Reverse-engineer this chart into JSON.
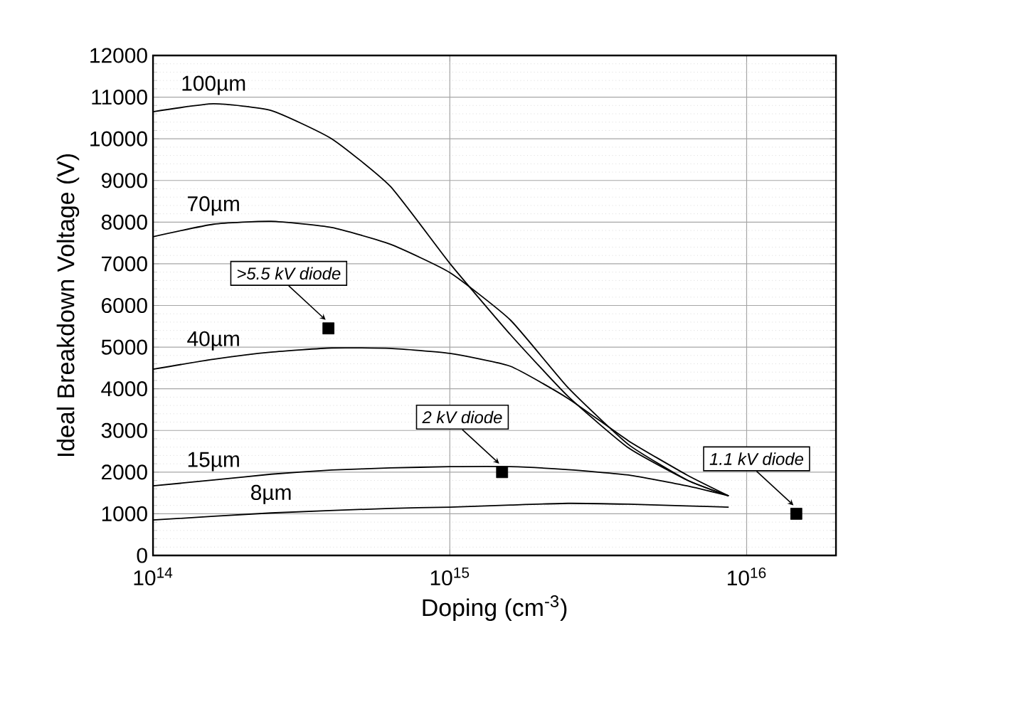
{
  "chart_data": {
    "type": "line",
    "xlabel": "Doping (cm$^{-3}$)",
    "ylabel": "Ideal Breakdown Voltage (V)",
    "log": "x",
    "xlim": [
      100000000000000.0,
      2e+16
    ],
    "ylim": [
      0,
      12000
    ],
    "xticks": [
      {
        "value": 100000000000000.0,
        "label": "10$^{14}$"
      },
      {
        "value": 1000000000000000.0,
        "label": "10$^{15}$"
      },
      {
        "value": 1e+16,
        "label": "10$^{16}$"
      }
    ],
    "yticks": [
      0,
      1000,
      2000,
      3000,
      4000,
      5000,
      6000,
      7000,
      8000,
      9000,
      10000,
      11000,
      12000
    ],
    "grid": true,
    "series": [
      {
        "name": "100µm",
        "color": "#000000",
        "x": [
          100000000000000.0,
          160000000000000.0,
          250000000000000.0,
          400000000000000.0,
          630000000000000.0,
          1000000000000000.0,
          1600000000000000.0,
          2500000000000000.0,
          4000000000000000.0,
          6300000000000000.0,
          8700000000000000.0
        ],
        "values": [
          10650,
          10840,
          10680,
          10000,
          8860,
          7010,
          5300,
          3820,
          2580,
          1810,
          1430
        ]
      },
      {
        "name": "70µm",
        "color": "#000000",
        "x": [
          100000000000000.0,
          160000000000000.0,
          250000000000000.0,
          400000000000000.0,
          630000000000000.0,
          1000000000000000.0,
          1600000000000000.0,
          2500000000000000.0,
          4000000000000000.0,
          6300000000000000.0,
          8700000000000000.0
        ],
        "values": [
          7650,
          7950,
          8020,
          7870,
          7470,
          6790,
          5650,
          4030,
          2660,
          1810,
          1430
        ]
      },
      {
        "name": "40µm",
        "color": "#000000",
        "x": [
          100000000000000.0,
          160000000000000.0,
          250000000000000.0,
          400000000000000.0,
          630000000000000.0,
          1000000000000000.0,
          1600000000000000.0,
          2500000000000000.0,
          4000000000000000.0,
          6300000000000000.0,
          8700000000000000.0
        ],
        "values": [
          4470,
          4710,
          4880,
          4980,
          4970,
          4850,
          4540,
          3770,
          2750,
          1930,
          1430
        ]
      },
      {
        "name": "15µm",
        "color": "#000000",
        "x": [
          100000000000000.0,
          160000000000000.0,
          250000000000000.0,
          400000000000000.0,
          630000000000000.0,
          1000000000000000.0,
          1600000000000000.0,
          2500000000000000.0,
          4000000000000000.0,
          6300000000000000.0,
          8700000000000000.0
        ],
        "values": [
          1670,
          1810,
          1950,
          2050,
          2100,
          2130,
          2130,
          2060,
          1930,
          1670,
          1430
        ]
      },
      {
        "name": "8µm",
        "color": "#000000",
        "x": [
          100000000000000.0,
          250000000000000.0,
          630000000000000.0,
          1000000000000000.0,
          1600000000000000.0,
          2500000000000000.0,
          4000000000000000.0,
          6300000000000000.0,
          8700000000000000.0
        ],
        "values": [
          850,
          1020,
          1130,
          1160,
          1210,
          1250,
          1230,
          1190,
          1160
        ]
      },
      {
        "type": "scatter",
        "marker": "square",
        "color": "#000000",
        "x": [
          390000000000000.0,
          1500000000000000.0,
          1.47e+16
        ],
        "values": [
          5450,
          2000,
          1000
        ]
      }
    ],
    "annotations": [
      {
        "text": ">5.5 kV diode",
        "x": 390000000000000.0,
        "y": 5450
      },
      {
        "text": "2 kV diode",
        "x": 1500000000000000.0,
        "y": 2000
      },
      {
        "text": "1.1 kV diode",
        "x": 1.47e+16,
        "y": 1000
      }
    ]
  }
}
